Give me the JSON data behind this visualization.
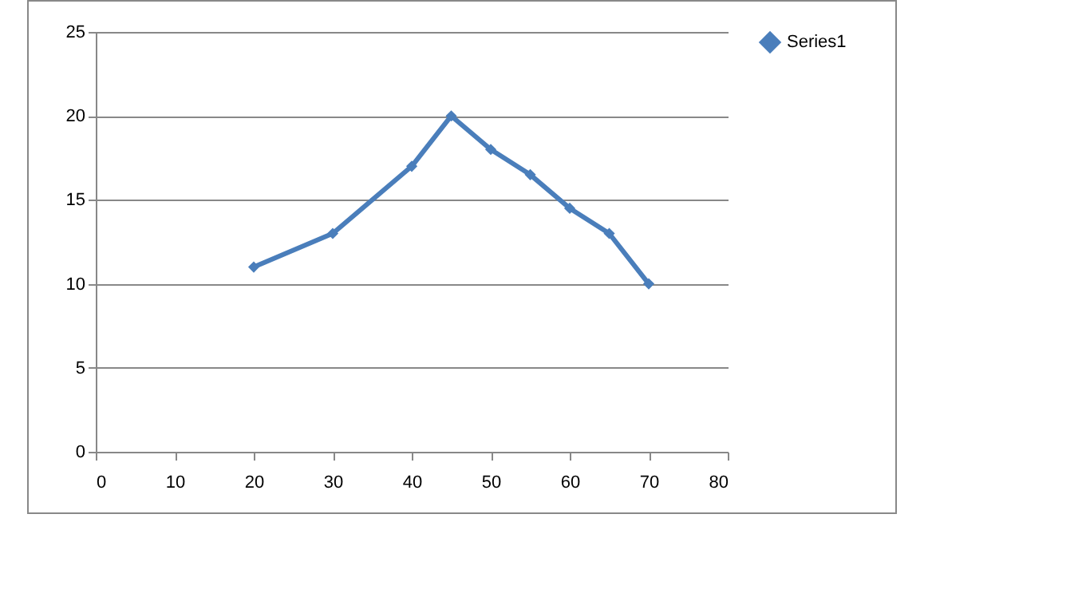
{
  "chart_data": {
    "type": "line",
    "x": [
      20,
      30,
      40,
      45,
      50,
      55,
      60,
      65,
      70
    ],
    "series": [
      {
        "name": "Series1",
        "color": "#4a7ebb",
        "values": [
          11,
          13,
          17,
          20,
          18,
          16.5,
          14.5,
          13,
          10
        ]
      }
    ],
    "xlim": [
      0,
      80
    ],
    "xticks": [
      0,
      10,
      20,
      30,
      40,
      50,
      60,
      70,
      80
    ],
    "ylim": [
      0,
      25
    ],
    "yticks": [
      0,
      5,
      10,
      15,
      20,
      25
    ],
    "grid": "y",
    "legend": "right",
    "marker": "diamond",
    "line_style": "solid"
  }
}
